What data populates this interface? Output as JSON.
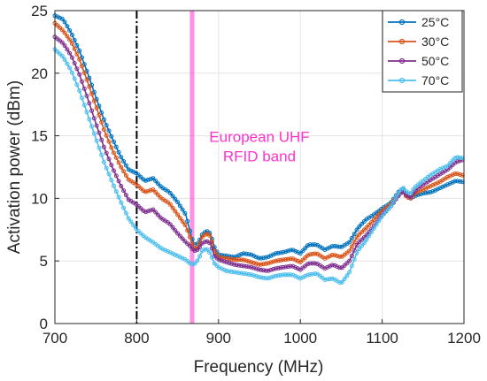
{
  "chart_data": {
    "type": "line",
    "xlabel": "Frequency (MHz)",
    "ylabel": "Activation power (dBm)",
    "xlim": [
      700,
      1200
    ],
    "ylim": [
      0,
      25
    ],
    "xticks": [
      700,
      800,
      900,
      1000,
      1100,
      1200
    ],
    "yticks": [
      0,
      5,
      10,
      15,
      20,
      25
    ],
    "grid": true,
    "legend_position": "top-right",
    "x": [
      700,
      710,
      720,
      730,
      740,
      750,
      760,
      770,
      780,
      790,
      800,
      810,
      820,
      830,
      840,
      850,
      860,
      865,
      870,
      875,
      880,
      885,
      890,
      895,
      900,
      910,
      920,
      930,
      940,
      950,
      960,
      970,
      980,
      990,
      1000,
      1010,
      1020,
      1030,
      1040,
      1050,
      1060,
      1070,
      1080,
      1090,
      1100,
      1110,
      1120,
      1125,
      1130,
      1135,
      1140,
      1150,
      1160,
      1170,
      1180,
      1190,
      1200
    ],
    "series": [
      {
        "name": "25°C",
        "color": "#0072bd",
        "values": [
          24.6,
          24.3,
          23.2,
          21.8,
          20.0,
          18.1,
          16.3,
          14.8,
          13.4,
          12.3,
          12.0,
          11.4,
          11.6,
          10.9,
          10.5,
          9.7,
          8.7,
          7.4,
          6.3,
          6.4,
          7.1,
          7.4,
          7.2,
          6.1,
          5.5,
          5.4,
          5.3,
          5.6,
          5.5,
          5.2,
          5.3,
          5.6,
          5.7,
          5.9,
          5.6,
          6.3,
          6.3,
          5.9,
          6.2,
          6.1,
          6.5,
          7.6,
          8.3,
          8.7,
          9.2,
          9.6,
          10.5,
          10.8,
          10.3,
          10.0,
          10.2,
          10.4,
          10.5,
          10.8,
          11.1,
          11.4,
          11.3
        ]
      },
      {
        "name": "30°C",
        "color": "#d95319",
        "values": [
          24.0,
          23.4,
          22.5,
          21.1,
          19.3,
          17.4,
          15.5,
          13.9,
          12.6,
          11.5,
          11.1,
          10.5,
          10.7,
          10.0,
          9.6,
          8.7,
          7.8,
          6.9,
          6.0,
          6.1,
          6.9,
          7.2,
          7.0,
          5.8,
          5.3,
          5.2,
          5.1,
          5.1,
          4.9,
          4.7,
          4.8,
          5.0,
          5.1,
          5.2,
          4.9,
          5.5,
          5.6,
          5.2,
          5.5,
          5.3,
          5.8,
          7.0,
          7.6,
          8.3,
          9.0,
          9.5,
          10.3,
          10.6,
          10.1,
          10.0,
          10.4,
          10.7,
          11.0,
          11.3,
          11.7,
          12.0,
          11.8
        ]
      },
      {
        "name": "50°C",
        "color": "#7e2f8e",
        "values": [
          22.9,
          22.4,
          21.4,
          19.9,
          18.0,
          16.0,
          14.1,
          12.5,
          11.1,
          9.9,
          9.5,
          8.9,
          9.1,
          8.4,
          8.0,
          7.2,
          6.5,
          6.2,
          5.8,
          5.9,
          6.4,
          6.6,
          6.4,
          5.4,
          5.1,
          4.9,
          4.7,
          4.6,
          4.5,
          4.3,
          4.2,
          4.4,
          4.5,
          4.6,
          4.3,
          4.8,
          4.8,
          4.4,
          4.7,
          4.4,
          5.0,
          6.4,
          7.0,
          7.8,
          8.7,
          9.3,
          10.2,
          10.6,
          10.2,
          10.1,
          10.6,
          11.1,
          11.5,
          11.9,
          12.3,
          12.9,
          13.1
        ]
      },
      {
        "name": "70°C",
        "color": "#4dbeee",
        "values": [
          21.9,
          21.3,
          20.2,
          18.6,
          16.7,
          14.8,
          12.9,
          11.3,
          9.8,
          8.4,
          7.5,
          6.9,
          6.5,
          6.0,
          5.7,
          5.4,
          5.1,
          4.8,
          4.7,
          5.1,
          5.8,
          6.0,
          5.6,
          4.8,
          4.5,
          4.2,
          4.1,
          4.0,
          3.9,
          3.7,
          3.6,
          3.8,
          3.9,
          3.9,
          3.6,
          3.9,
          4.0,
          3.5,
          3.6,
          3.2,
          4.1,
          5.8,
          6.6,
          7.6,
          8.6,
          9.3,
          10.4,
          10.9,
          10.5,
          10.4,
          10.9,
          11.4,
          11.9,
          12.3,
          12.6,
          13.3,
          13.2
        ]
      }
    ],
    "vertical_lines": [
      {
        "x": 800,
        "color": "#000000",
        "style": "dash-dot"
      }
    ],
    "band": {
      "x0": 865,
      "x1": 868,
      "color": "#ff33cc"
    },
    "annotations": [
      {
        "lines": [
          "European UHF",
          "RFID band"
        ],
        "x": 950,
        "y": 14.5,
        "color": "#ff33cc"
      }
    ]
  }
}
